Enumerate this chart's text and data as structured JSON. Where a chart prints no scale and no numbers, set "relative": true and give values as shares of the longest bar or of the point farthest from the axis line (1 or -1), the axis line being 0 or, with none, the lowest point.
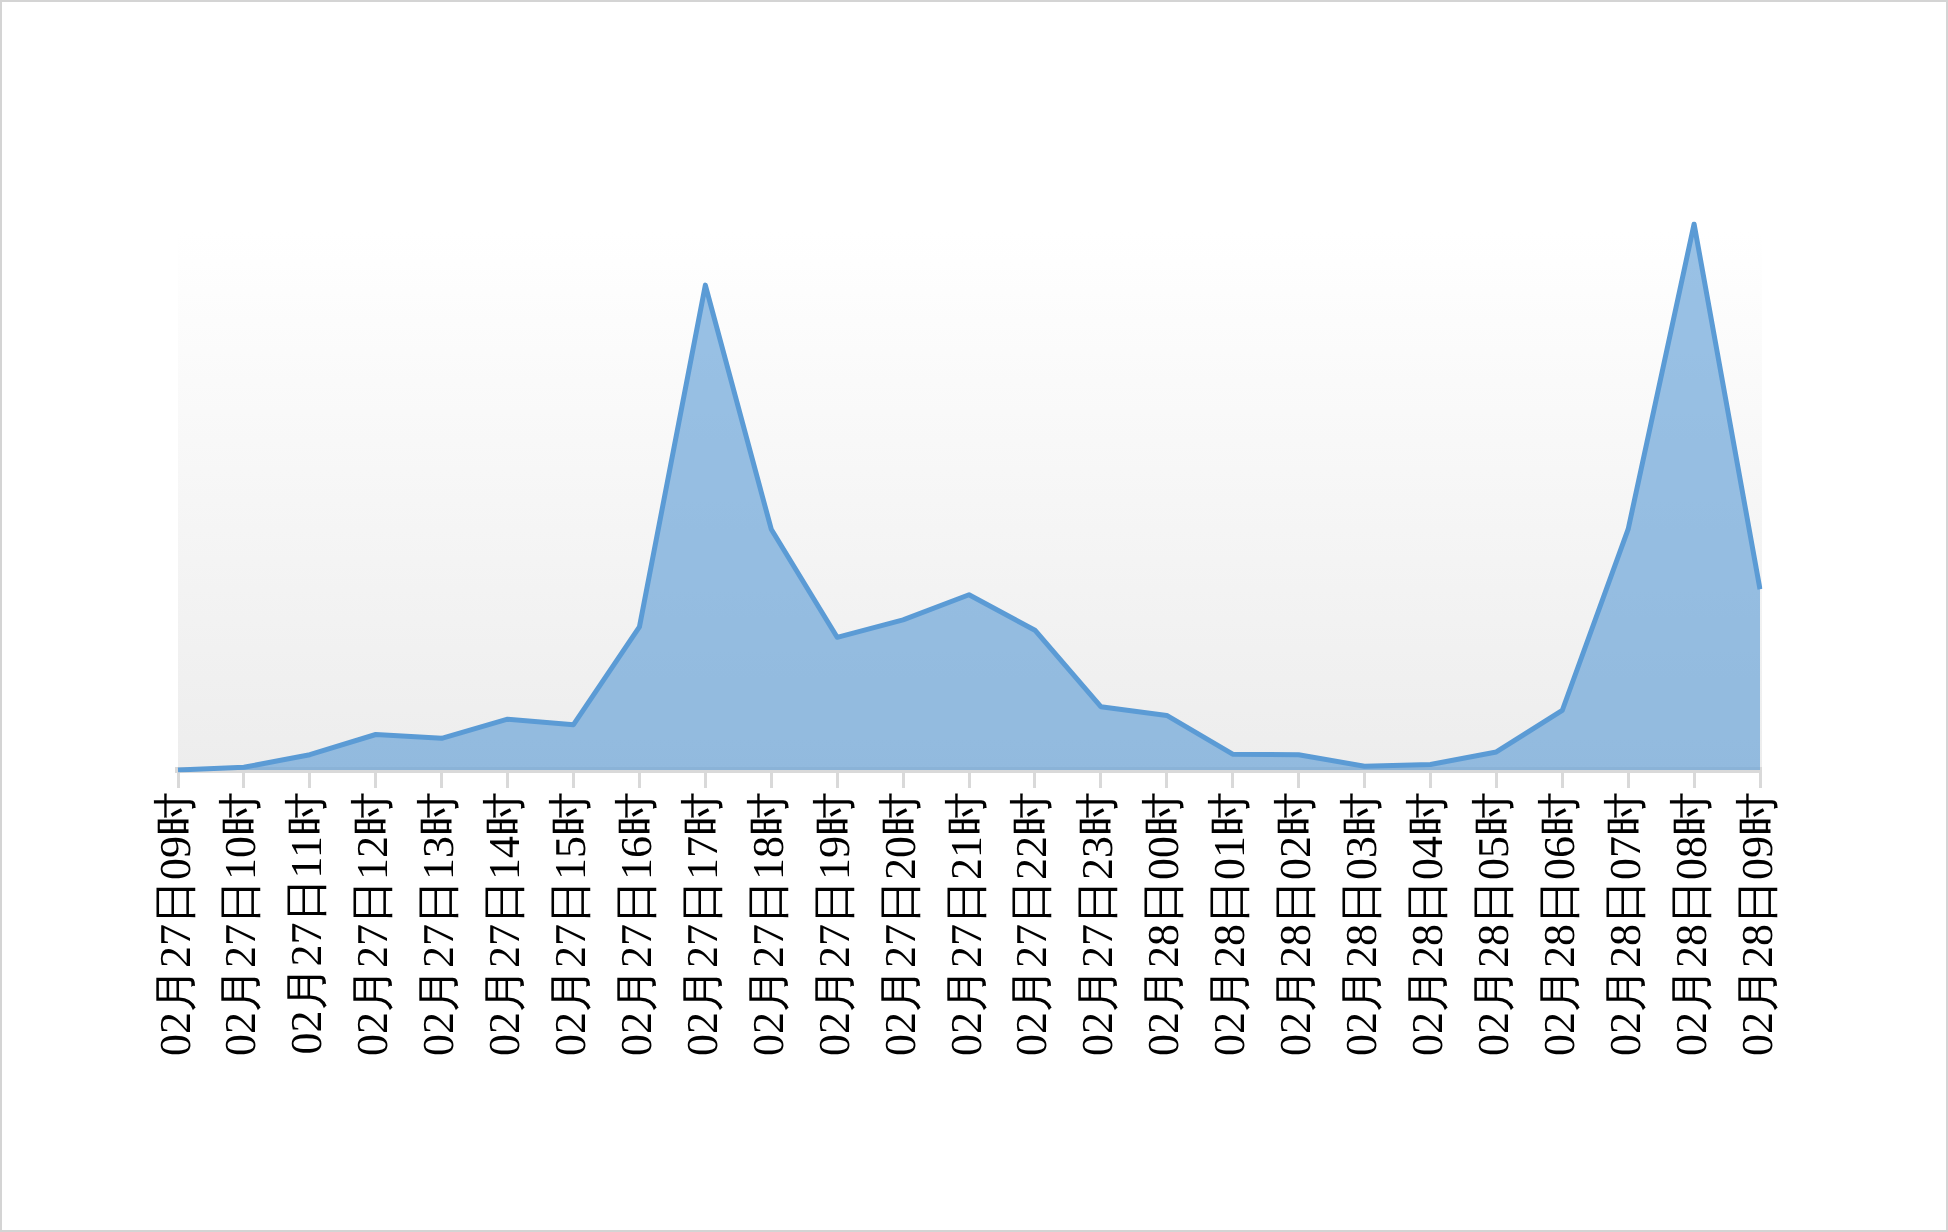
{
  "chart_data": {
    "type": "area",
    "relative": true,
    "categories": [
      "02月27日09时",
      "02月27日10时",
      "02月27日11时",
      "02月27日12时",
      "02月27日13时",
      "02月27日14时",
      "02月27日15时",
      "02月27日16时",
      "02月27日17时",
      "02月27日18时",
      "02月27日19时",
      "02月27日20时",
      "02月27日21时",
      "02月27日22时",
      "02月27日23时",
      "02月28日00时",
      "02月28日01时",
      "02月28日02时",
      "02月28日03时",
      "02月28日04时",
      "02月28日05时",
      "02月28日06时",
      "02月28日07时",
      "02月28日08时",
      "02月28日09时"
    ],
    "values": [
      0,
      0.005,
      0.028,
      0.065,
      0.058,
      0.093,
      0.083,
      0.262,
      0.888,
      0.441,
      0.243,
      0.275,
      0.321,
      0.256,
      0.116,
      0.1,
      0.029,
      0.028,
      0.007,
      0.01,
      0.033,
      0.109,
      0.441,
      1,
      0.331
    ],
    "color": "#5b9bd5",
    "marker": "none"
  }
}
